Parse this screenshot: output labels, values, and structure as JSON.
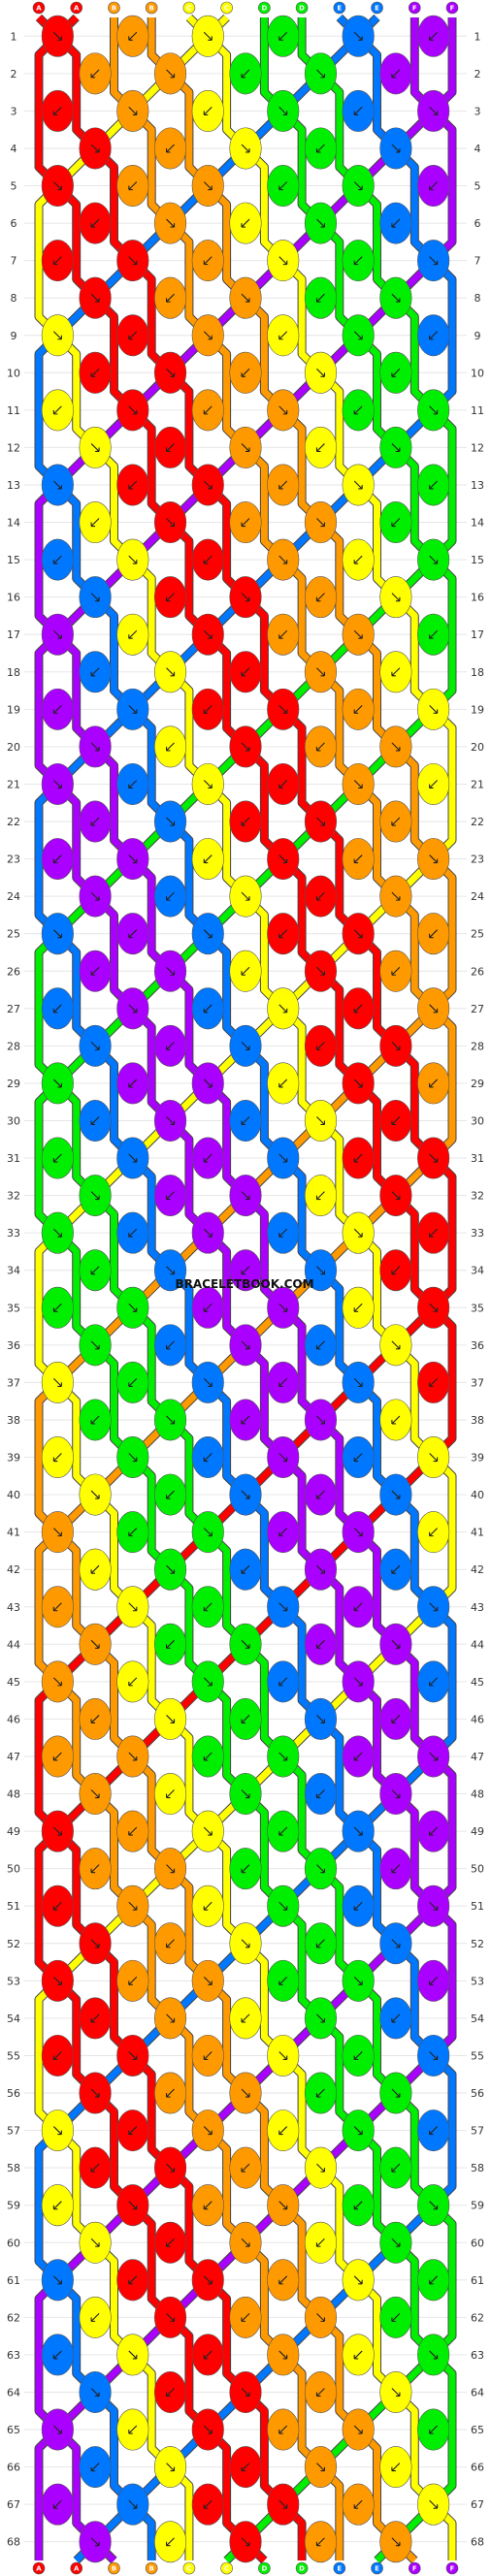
{
  "watermark": "BRACELETBOOK.COM",
  "strand_labels": [
    "A",
    "A",
    "B",
    "B",
    "C",
    "C",
    "D",
    "D",
    "E",
    "E",
    "F",
    "F"
  ],
  "strand_colors": {
    "A": "#ff0000",
    "B": "#ff9900",
    "C": "#ffff00",
    "D": "#00ee00",
    "E": "#0077ff",
    "F": "#aa00ff"
  },
  "row_count": 68,
  "row_numbers": [
    "1",
    "2",
    "3",
    "4",
    "5",
    "6",
    "7",
    "8",
    "9",
    "10",
    "11",
    "12",
    "13",
    "14",
    "15",
    "16",
    "17",
    "18",
    "19",
    "20",
    "21",
    "22",
    "23",
    "24",
    "25",
    "26",
    "27",
    "28",
    "29",
    "30",
    "31",
    "32",
    "33",
    "34",
    "35",
    "36",
    "37",
    "38",
    "39",
    "40",
    "41",
    "42",
    "43",
    "44",
    "45",
    "46",
    "47",
    "48",
    "49",
    "50",
    "51",
    "52",
    "53",
    "54",
    "55",
    "56",
    "57",
    "58",
    "59",
    "60",
    "61",
    "62",
    "63",
    "64",
    "65",
    "66",
    "67",
    "68"
  ],
  "knot_icons": [
    "knot-forward-icon",
    "knot-backward-icon"
  ]
}
